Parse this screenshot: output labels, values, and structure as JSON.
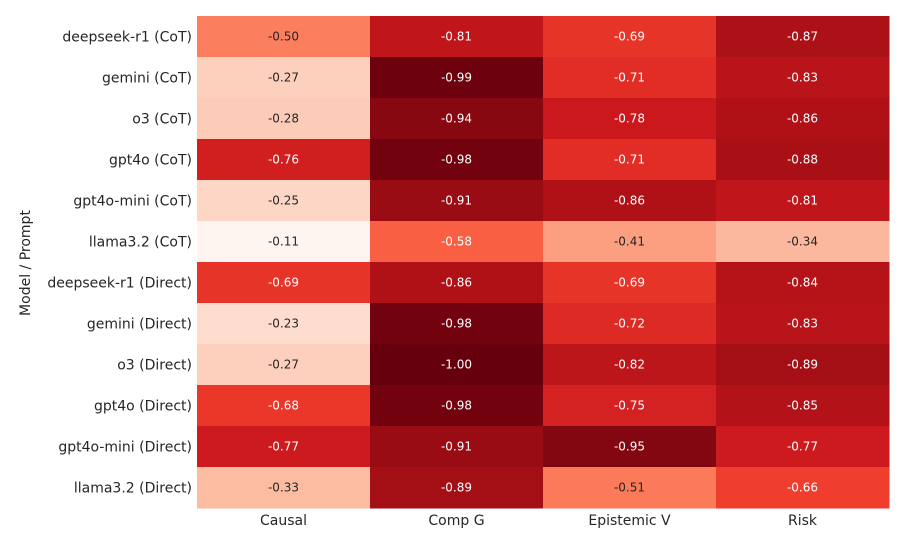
{
  "chart_data": {
    "type": "heatmap",
    "ylabel": "Model / Prompt",
    "xlabel": "",
    "columns": [
      "Causal",
      "Comp G",
      "Epistemic V",
      "Risk"
    ],
    "rows": [
      "deepseek-r1 (CoT)",
      "gemini (CoT)",
      "o3 (CoT)",
      "gpt4o (CoT)",
      "gpt4o-mini (CoT)",
      "llama3.2 (CoT)",
      "deepseek-r1 (Direct)",
      "gemini (Direct)",
      "o3 (Direct)",
      "gpt4o (Direct)",
      "gpt4o-mini (Direct)",
      "llama3.2 (Direct)"
    ],
    "values": [
      [
        -0.5,
        -0.81,
        -0.69,
        -0.87
      ],
      [
        -0.27,
        -0.99,
        -0.71,
        -0.83
      ],
      [
        -0.28,
        -0.94,
        -0.78,
        -0.86
      ],
      [
        -0.76,
        -0.98,
        -0.71,
        -0.88
      ],
      [
        -0.25,
        -0.91,
        -0.86,
        -0.81
      ],
      [
        -0.11,
        -0.58,
        -0.41,
        -0.34
      ],
      [
        -0.69,
        -0.86,
        -0.69,
        -0.84
      ],
      [
        -0.23,
        -0.98,
        -0.72,
        -0.83
      ],
      [
        -0.27,
        -1.0,
        -0.82,
        -0.89
      ],
      [
        -0.68,
        -0.98,
        -0.75,
        -0.85
      ],
      [
        -0.77,
        -0.91,
        -0.95,
        -0.77
      ],
      [
        -0.33,
        -0.89,
        -0.51,
        -0.66
      ]
    ],
    "labels": [
      [
        "-0.50",
        "-0.81",
        "-0.69",
        "-0.87"
      ],
      [
        "-0.27",
        "-0.99",
        "-0.71",
        "-0.83"
      ],
      [
        "-0.28",
        "-0.94",
        "-0.78",
        "-0.86"
      ],
      [
        "-0.76",
        "-0.98",
        "-0.71",
        "-0.88"
      ],
      [
        "-0.25",
        "-0.91",
        "-0.86",
        "-0.81"
      ],
      [
        "-0.11",
        "-0.58",
        "-0.41",
        "-0.34"
      ],
      [
        "-0.69",
        "-0.86",
        "-0.69",
        "-0.84"
      ],
      [
        "-0.23",
        "-0.98",
        "-0.72",
        "-0.83"
      ],
      [
        "-0.27",
        "-1.00",
        "-0.82",
        "-0.89"
      ],
      [
        "-0.68",
        "-0.98",
        "-0.75",
        "-0.85"
      ],
      [
        "-0.77",
        "-0.91",
        "-0.95",
        "-0.77"
      ],
      [
        "-0.33",
        "-0.89",
        "-0.51",
        "-0.66"
      ]
    ],
    "colormap": "Reds (reversed, -1 darkest)",
    "color_range": [
      -1.0,
      -0.11
    ],
    "grid": false
  }
}
